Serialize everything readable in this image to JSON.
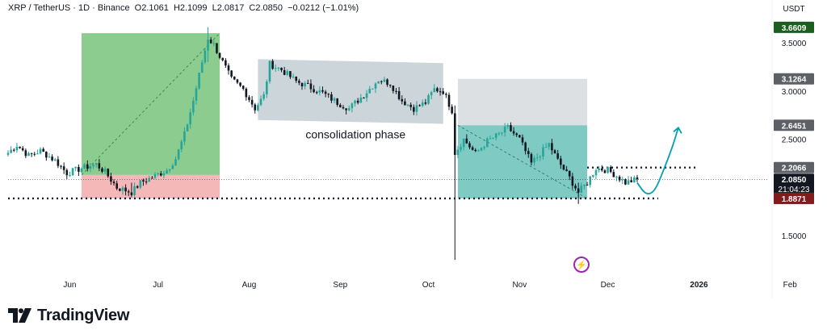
{
  "header": {
    "symbol": "XRP / TetherUS · 1D · Binance",
    "open": "O2.1061",
    "high": "H2.1099",
    "low": "L2.0817",
    "close": "C2.0850",
    "change": "−0.0212 (−1.01%)"
  },
  "brand": {
    "name": "TradingView"
  },
  "colors": {
    "up": "#26a69a",
    "down": "#131722",
    "buy_zone": "#66bb6a",
    "sell_zone": "#ef9a9a",
    "range_box": "#b0bec5",
    "target_box": "#d9dde0",
    "teal_zone": "#4db6ac",
    "projection": "#00a0b0",
    "current": "#131722",
    "alert": "#9c27b0"
  },
  "chart_data": {
    "type": "candlestick",
    "title": "",
    "price_axis_unit": "USDT",
    "price_axis_ticks": [
      "3.5000",
      "3.0000",
      "2.5000",
      "1.5000"
    ],
    "price_labels": [
      {
        "text": "3.6609",
        "value": 3.6609,
        "color": "#1b5e20"
      },
      {
        "text": "3.1264",
        "value": 3.1264,
        "color": "#5d6166"
      },
      {
        "text": "2.6451",
        "value": 2.6451,
        "color": "#5d6166"
      },
      {
        "text": "2.2066",
        "value": 2.2066,
        "color": "#5d6166"
      },
      {
        "text": "2.0850",
        "value": 2.085,
        "color": "#131722",
        "countdown": "21:04:23"
      },
      {
        "text": "1.8872",
        "value": 1.8872,
        "color": "#1e8a57"
      },
      {
        "text": "1.8871",
        "value": 1.8871,
        "color": "#7f1d1d"
      }
    ],
    "time_axis": [
      "Jun",
      "Jul",
      "Aug",
      "Sep",
      "Oct",
      "Nov",
      "Dec",
      "2026",
      "Feb"
    ],
    "ylim": [
      1.1,
      3.76
    ],
    "start_date": "2025-05-11",
    "end_date": "2025-12-11",
    "anchors": [
      [
        "2025-05-11",
        2.36
      ],
      [
        "2025-05-14",
        2.44
      ],
      [
        "2025-05-18",
        2.33
      ],
      [
        "2025-05-22",
        2.38
      ],
      [
        "2025-05-27",
        2.28
      ],
      [
        "2025-05-31",
        2.15
      ],
      [
        "2025-06-05",
        2.2
      ],
      [
        "2025-06-10",
        2.24
      ],
      [
        "2025-06-13",
        2.16
      ],
      [
        "2025-06-17",
        2.0
      ],
      [
        "2025-06-22",
        1.95
      ],
      [
        "2025-06-25",
        2.05
      ],
      [
        "2025-06-30",
        2.12
      ],
      [
        "2025-07-04",
        2.18
      ],
      [
        "2025-07-07",
        2.3
      ],
      [
        "2025-07-10",
        2.55
      ],
      [
        "2025-07-13",
        2.9
      ],
      [
        "2025-07-16",
        3.3
      ],
      [
        "2025-07-18",
        3.55
      ],
      [
        "2025-07-20",
        3.48
      ],
      [
        "2025-07-23",
        3.3
      ],
      [
        "2025-07-26",
        3.12
      ],
      [
        "2025-07-30",
        3.02
      ],
      [
        "2025-08-03",
        2.82
      ],
      [
        "2025-08-06",
        2.95
      ],
      [
        "2025-08-08",
        3.28
      ],
      [
        "2025-08-12",
        3.22
      ],
      [
        "2025-08-17",
        3.1
      ],
      [
        "2025-08-21",
        3.05
      ],
      [
        "2025-08-26",
        2.98
      ],
      [
        "2025-08-31",
        2.88
      ],
      [
        "2025-09-04",
        2.82
      ],
      [
        "2025-09-09",
        2.96
      ],
      [
        "2025-09-14",
        3.12
      ],
      [
        "2025-09-18",
        3.08
      ],
      [
        "2025-09-22",
        2.9
      ],
      [
        "2025-09-26",
        2.82
      ],
      [
        "2025-09-30",
        2.88
      ],
      [
        "2025-10-03",
        3.02
      ],
      [
        "2025-10-06",
        3.0
      ],
      [
        "2025-10-09",
        2.8
      ],
      [
        "2025-10-10",
        2.36
      ],
      [
        "2025-10-13",
        2.5
      ],
      [
        "2025-10-17",
        2.35
      ],
      [
        "2025-10-21",
        2.48
      ],
      [
        "2025-10-25",
        2.55
      ],
      [
        "2025-10-28",
        2.62
      ],
      [
        "2025-11-01",
        2.5
      ],
      [
        "2025-11-05",
        2.25
      ],
      [
        "2025-11-08",
        2.35
      ],
      [
        "2025-11-11",
        2.45
      ],
      [
        "2025-11-14",
        2.28
      ],
      [
        "2025-11-18",
        2.1
      ],
      [
        "2025-11-21",
        1.95
      ],
      [
        "2025-11-24",
        2.05
      ],
      [
        "2025-11-27",
        2.2
      ],
      [
        "2025-12-01",
        2.18
      ],
      [
        "2025-12-04",
        2.12
      ],
      [
        "2025-12-07",
        2.05
      ],
      [
        "2025-12-11",
        2.085
      ]
    ],
    "wicks": [
      {
        "date": "2025-10-10",
        "high": 2.85,
        "low": 1.25
      },
      {
        "date": "2025-07-18",
        "high": 3.6609,
        "low": 3.3
      },
      {
        "date": "2025-06-22",
        "high": 2.05,
        "low": 1.9
      },
      {
        "date": "2025-11-21",
        "high": 2.05,
        "low": 1.83
      }
    ],
    "horizontal_lines": [
      {
        "value": 1.8872,
        "style": "dotted"
      },
      {
        "value": 2.2066,
        "style": "dotted",
        "from": "2025-11-24",
        "to": "2025-12-31"
      },
      {
        "value": 2.085,
        "style": "current"
      }
    ],
    "zones": [
      {
        "name": "long-profit",
        "from": "2025-06-05",
        "to": "2025-07-22",
        "low": 2.13,
        "high": 3.6
      },
      {
        "name": "long-stop",
        "from": "2025-06-05",
        "to": "2025-07-22",
        "low": 1.8872,
        "high": 2.13
      },
      {
        "name": "consolidation",
        "from": "2025-08-04",
        "to": "2025-10-06",
        "top_left": 3.33,
        "top_right": 3.29,
        "bottom_left": 2.7,
        "bottom_right": 2.66
      },
      {
        "name": "target",
        "from": "2025-10-11",
        "to": "2025-11-24",
        "low": 2.645,
        "high": 3.1264
      },
      {
        "name": "range",
        "from": "2025-10-11",
        "to": "2025-11-24",
        "low": 1.8872,
        "high": 2.645
      }
    ],
    "annotations": [
      {
        "text": "consolidation phase",
        "date": "2025-09-04",
        "value": 2.55
      }
    ],
    "projection": [
      [
        "2025-12-11",
        2.05
      ],
      [
        "2025-12-14",
        1.92
      ],
      [
        "2025-12-17",
        1.96
      ],
      [
        "2025-12-20",
        2.18
      ],
      [
        "2025-12-23",
        2.42
      ],
      [
        "2025-12-25",
        2.62
      ]
    ]
  }
}
